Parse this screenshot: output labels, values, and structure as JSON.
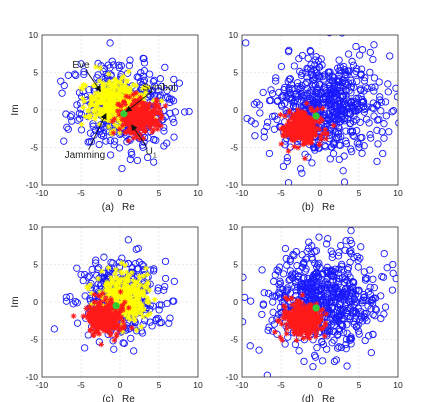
{
  "figure": {
    "background": "#ffffff",
    "colors": {
      "eve": "#1a1aff",
      "jamming": "#ffff00",
      "user": "#ff1a1a",
      "symbol": "#33cc33",
      "grid": "#d9d9d9",
      "axis": "#333333"
    }
  },
  "chart_data": [
    {
      "type": "scatter",
      "panel": "(a)",
      "xlabel": "Re",
      "ylabel": "Im",
      "xlim": [
        -10,
        10
      ],
      "ylim": [
        -10,
        10
      ],
      "xticks": [
        "-10",
        "-5",
        "0",
        "5",
        "10"
      ],
      "yticks": [
        "10",
        "5",
        "0",
        "-5",
        "-10"
      ],
      "grid": true,
      "series": [
        {
          "name": "Eve",
          "marker": "circle",
          "color": "#1a1aff",
          "center": [
            0.5,
            0.5
          ],
          "spread": [
            3.2,
            2.8
          ],
          "n": 420
        },
        {
          "name": "Jamming",
          "marker": "star",
          "color": "#ffff00",
          "center": [
            -0.5,
            1.0
          ],
          "spread": [
            1.8,
            1.6
          ],
          "n": 380
        },
        {
          "name": "U1",
          "marker": "star",
          "color": "#ff1a1a",
          "center": [
            2.5,
            -1.0
          ],
          "spread": [
            1.3,
            1.2
          ],
          "n": 320
        },
        {
          "name": "Symbol",
          "marker": "dot",
          "color": "#33cc33",
          "points": [
            [
              0.5,
              -0.5
            ]
          ]
        }
      ],
      "annotations": [
        {
          "text": "Eve",
          "sub": "",
          "at": [
            -5.0,
            6.0
          ],
          "arrow_to": [
            -2.5,
            2.5
          ]
        },
        {
          "text": "Symbol",
          "sub": "",
          "at": [
            5.0,
            3.0
          ],
          "arrow_to": [
            0.8,
            -0.2
          ]
        },
        {
          "text": "Jamming",
          "sub": "",
          "at": [
            -4.5,
            -6.0
          ],
          "arrow_to": [
            -1.8,
            -0.5
          ]
        },
        {
          "text": "U",
          "sub": "1",
          "at": [
            4.0,
            -5.5
          ],
          "arrow_to": [
            1.5,
            -2.0
          ]
        }
      ],
      "caption": {
        "label": "(a)",
        "xlabel": "Re"
      }
    },
    {
      "type": "scatter",
      "panel": "(b)",
      "xlabel": "Re",
      "ylabel": "",
      "xlim": [
        -10,
        10
      ],
      "ylim": [
        -10,
        10
      ],
      "xticks": [
        "-10",
        "-5",
        "0",
        "5",
        "10"
      ],
      "yticks": [
        "10",
        "5",
        "0",
        "-5",
        "-10"
      ],
      "grid": true,
      "series": [
        {
          "name": "Eve",
          "marker": "circle",
          "color": "#1a1aff",
          "center": [
            0.5,
            0.5
          ],
          "spread": [
            3.6,
            3.2
          ],
          "n": 650
        },
        {
          "name": "U1",
          "marker": "star",
          "color": "#ff1a1a",
          "center": [
            -2.2,
            -2.3
          ],
          "spread": [
            1.2,
            1.1
          ],
          "n": 320
        },
        {
          "name": "Symbol",
          "marker": "dot",
          "color": "#33cc33",
          "points": [
            [
              -0.5,
              -0.8
            ]
          ]
        }
      ],
      "annotations": [],
      "caption": {
        "label": "(b)",
        "xlabel": "Re"
      }
    },
    {
      "type": "scatter",
      "panel": "(c)",
      "xlabel": "Re",
      "ylabel": "Im",
      "xlim": [
        -10,
        10
      ],
      "ylim": [
        -10,
        10
      ],
      "xticks": [
        "-10",
        "-5",
        "0",
        "5",
        "10"
      ],
      "yticks": [
        "10",
        "5",
        "0",
        "-5",
        "-10"
      ],
      "grid": true,
      "series": [
        {
          "name": "Eve",
          "marker": "circle",
          "color": "#1a1aff",
          "center": [
            0.0,
            0.5
          ],
          "spread": [
            2.8,
            2.6
          ],
          "n": 380
        },
        {
          "name": "Jamming",
          "marker": "star",
          "color": "#ffff00",
          "center": [
            0.5,
            0.5
          ],
          "spread": [
            1.6,
            1.6
          ],
          "n": 330
        },
        {
          "name": "U1",
          "marker": "star",
          "color": "#ff1a1a",
          "center": [
            -2.0,
            -2.0
          ],
          "spread": [
            1.2,
            1.1
          ],
          "n": 300
        },
        {
          "name": "Symbol",
          "marker": "dot",
          "color": "#33cc33",
          "points": [
            [
              -0.5,
              -0.5
            ]
          ]
        }
      ],
      "annotations": [],
      "caption": {
        "label": "(c)",
        "xlabel": "Re"
      }
    },
    {
      "type": "scatter",
      "panel": "(d)",
      "xlabel": "Re",
      "ylabel": "",
      "xlim": [
        -10,
        10
      ],
      "ylim": [
        -10,
        10
      ],
      "xticks": [
        "-10",
        "-5",
        "0",
        "5",
        "10"
      ],
      "yticks": [
        "10",
        "5",
        "0",
        "-5",
        "-10"
      ],
      "grid": true,
      "series": [
        {
          "name": "Eve",
          "marker": "circle",
          "color": "#1a1aff",
          "center": [
            0.5,
            0.5
          ],
          "spread": [
            3.6,
            3.2
          ],
          "n": 650
        },
        {
          "name": "U1",
          "marker": "star",
          "color": "#ff1a1a",
          "center": [
            -2.2,
            -2.3
          ],
          "spread": [
            1.2,
            1.1
          ],
          "n": 320
        },
        {
          "name": "Symbol",
          "marker": "dot",
          "color": "#33cc33",
          "points": [
            [
              -0.5,
              -0.8
            ]
          ]
        }
      ],
      "annotations": [],
      "caption": {
        "label": "(d)",
        "xlabel": "Re"
      }
    }
  ]
}
